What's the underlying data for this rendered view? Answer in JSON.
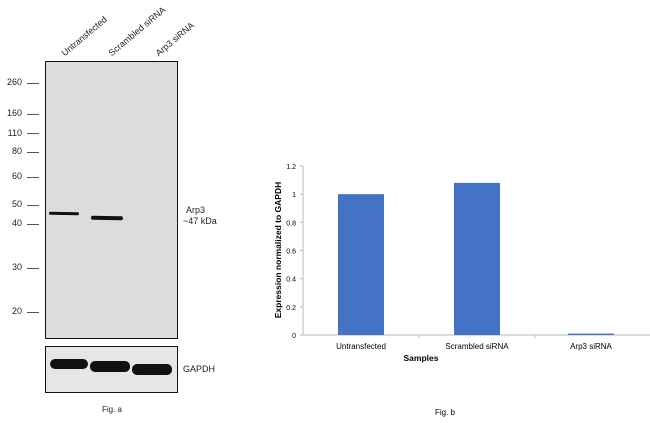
{
  "fig_a": {
    "lanes": [
      "Untransfected",
      "Scrambled siRNA",
      "Arp3 siRNA"
    ],
    "markers": [
      "260",
      "160",
      "110",
      "80",
      "60",
      "50",
      "40",
      "30",
      "20"
    ],
    "band_label": "Arp3",
    "band_size": "~47 kDa",
    "loading_label": "GAPDH",
    "caption": "Fig. a"
  },
  "fig_b": {
    "caption": "Fig. b"
  },
  "chart_data": {
    "type": "bar",
    "categories": [
      "Untransfected",
      "Scrambled siRNA",
      "Arp3 siRNA"
    ],
    "values": [
      1.0,
      1.08,
      0.01
    ],
    "xlabel": "Samples",
    "ylabel": "Expression  normalized to GAPDH",
    "ylim": [
      0,
      1.2
    ],
    "yticks": [
      "0",
      "0.2",
      "0.4",
      "0.6",
      "0.8",
      "1",
      "1.2"
    ],
    "color": "#4472c4",
    "grid": false
  }
}
